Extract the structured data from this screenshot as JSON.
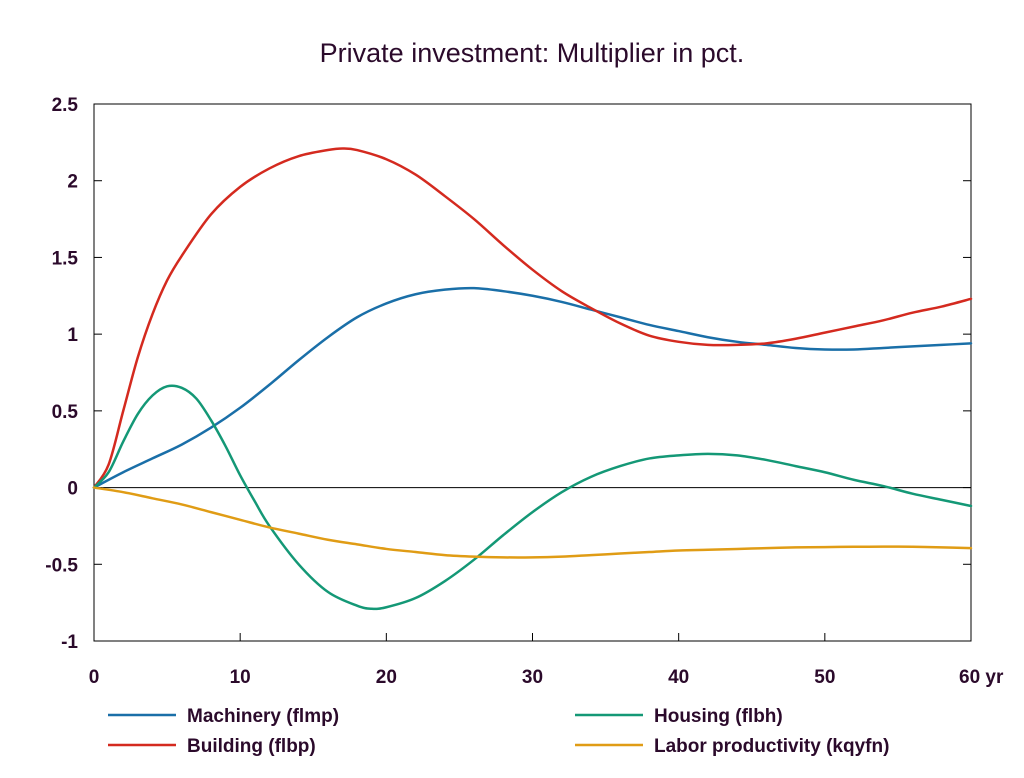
{
  "chart_data": {
    "type": "line",
    "title": "Private investment: Multiplier in pct.",
    "x_unit_label": "yr",
    "xlim": [
      0,
      60
    ],
    "ylim": [
      -1,
      2.5
    ],
    "x_ticks": [
      0,
      10,
      20,
      30,
      40,
      50,
      60
    ],
    "y_ticks": [
      2.5,
      2,
      1.5,
      1,
      0.5,
      0,
      -0.5,
      -1
    ],
    "x_tick_labels": [
      "0",
      "10",
      "20",
      "30",
      "40",
      "50",
      "60 yr"
    ],
    "y_tick_labels": [
      "2.5",
      "2",
      "1.5",
      "1",
      "0.5",
      "0",
      "-0.5",
      "-1"
    ],
    "grid": false,
    "zero_line": true,
    "legend_position": "bottom",
    "series": [
      {
        "name": "Machinery (flmp)",
        "color": "#1a6fa8",
        "x": [
          0,
          2,
          4,
          6,
          8,
          10,
          12,
          14,
          16,
          18,
          20,
          22,
          24,
          26,
          28,
          30,
          32,
          34,
          36,
          38,
          40,
          42,
          44,
          46,
          48,
          50,
          52,
          54,
          56,
          58,
          60
        ],
        "y": [
          0,
          0.1,
          0.19,
          0.28,
          0.39,
          0.52,
          0.67,
          0.83,
          0.98,
          1.11,
          1.2,
          1.26,
          1.29,
          1.3,
          1.28,
          1.25,
          1.21,
          1.16,
          1.11,
          1.06,
          1.02,
          0.98,
          0.95,
          0.93,
          0.91,
          0.9,
          0.9,
          0.91,
          0.92,
          0.93,
          0.94
        ]
      },
      {
        "name": "Building (flbp)",
        "color": "#d42a1f",
        "x": [
          0,
          1,
          2,
          3,
          4,
          5,
          6,
          8,
          10,
          12,
          14,
          16,
          17,
          18,
          20,
          22,
          24,
          26,
          28,
          30,
          32,
          34,
          36,
          38,
          40,
          42,
          44,
          46,
          48,
          50,
          52,
          54,
          56,
          58,
          60
        ],
        "y": [
          0,
          0.15,
          0.5,
          0.85,
          1.13,
          1.35,
          1.51,
          1.78,
          1.96,
          2.08,
          2.16,
          2.2,
          2.21,
          2.2,
          2.14,
          2.04,
          1.9,
          1.75,
          1.58,
          1.42,
          1.28,
          1.17,
          1.07,
          0.99,
          0.95,
          0.93,
          0.93,
          0.94,
          0.97,
          1.01,
          1.05,
          1.09,
          1.14,
          1.18,
          1.23
        ]
      },
      {
        "name": "Housing (flbh)",
        "color": "#149876",
        "x": [
          0,
          1,
          2,
          3,
          4,
          5,
          6,
          7,
          8,
          9,
          10,
          11,
          12,
          14,
          16,
          18,
          19,
          20,
          22,
          24,
          26,
          28,
          30,
          32,
          34,
          36,
          38,
          40,
          42,
          44,
          46,
          48,
          50,
          52,
          54,
          56,
          58,
          60
        ],
        "y": [
          0,
          0.1,
          0.3,
          0.48,
          0.6,
          0.66,
          0.65,
          0.58,
          0.44,
          0.27,
          0.08,
          -0.09,
          -0.25,
          -0.5,
          -0.68,
          -0.77,
          -0.79,
          -0.78,
          -0.72,
          -0.61,
          -0.47,
          -0.31,
          -0.16,
          -0.03,
          0.07,
          0.14,
          0.19,
          0.21,
          0.22,
          0.21,
          0.18,
          0.14,
          0.1,
          0.05,
          0.01,
          -0.04,
          -0.08,
          -0.12
        ]
      },
      {
        "name": "Labor productivity (kqyfn)",
        "color": "#e09c15",
        "x": [
          0,
          2,
          4,
          6,
          8,
          10,
          12,
          14,
          16,
          18,
          20,
          22,
          24,
          26,
          28,
          30,
          32,
          34,
          36,
          38,
          40,
          42,
          44,
          46,
          48,
          50,
          52,
          54,
          56,
          58,
          60
        ],
        "y": [
          0,
          -0.03,
          -0.07,
          -0.11,
          -0.16,
          -0.21,
          -0.26,
          -0.3,
          -0.34,
          -0.37,
          -0.4,
          -0.42,
          -0.44,
          -0.45,
          -0.455,
          -0.455,
          -0.45,
          -0.44,
          -0.43,
          -0.42,
          -0.41,
          -0.405,
          -0.4,
          -0.395,
          -0.39,
          -0.388,
          -0.386,
          -0.385,
          -0.386,
          -0.39,
          -0.395
        ]
      }
    ]
  }
}
